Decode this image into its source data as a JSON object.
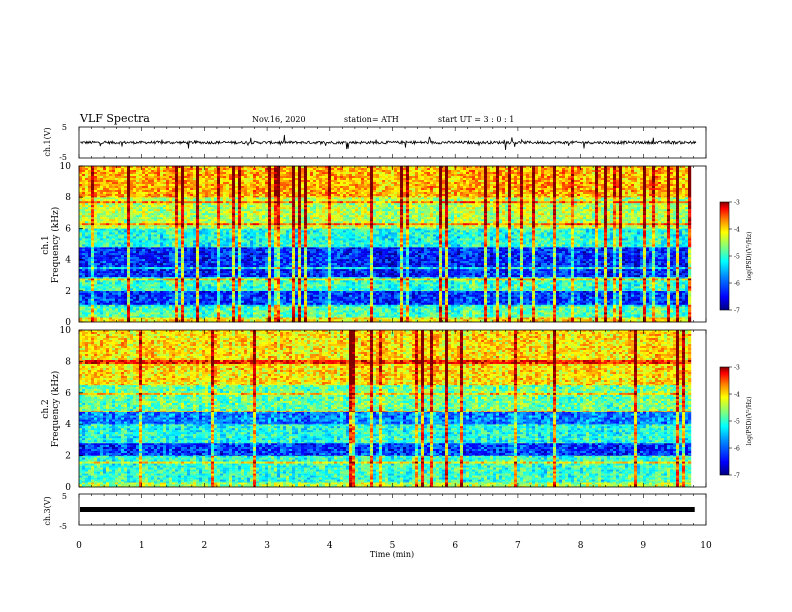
{
  "header": {
    "title": "VLF Spectra",
    "date": "Nov.16, 2020",
    "station": "station= ATH",
    "start": "start  UT =  3 : 0  : 1"
  },
  "colors": {
    "colormap": [
      "#00007f",
      "#0000ff",
      "#0080ff",
      "#00ffff",
      "#7fff7f",
      "#ffff00",
      "#ff8000",
      "#ff0000",
      "#7f0000"
    ]
  },
  "chart_data": [
    {
      "type": "line",
      "panel": "ch1-waveform",
      "ylabel": "ch.1(V)",
      "yticks": [
        5,
        -5
      ],
      "ylim": [
        -5,
        5
      ],
      "xlim": [
        0,
        10
      ],
      "note_level": "signal centered near 0 V with spikes of roughly ±2 V"
    },
    {
      "type": "heatmap",
      "panel": "ch1-spectrogram",
      "ylabel": "ch.1\nFrequency (kHz)",
      "ylabel_line1": "ch.1",
      "ylabel_line2": "Frequency (kHz)",
      "yticks": [
        0,
        2,
        4,
        6,
        8,
        10
      ],
      "ylim": [
        0,
        10
      ],
      "xlim": [
        0,
        9.8
      ],
      "colorbar": {
        "label": "log(PSD)(V²/Hz)",
        "ticks": [
          -3,
          -4,
          -5,
          -6,
          -7
        ],
        "range": [
          -7,
          -3
        ]
      },
      "bands_khz": [
        {
          "from": 0.0,
          "to": 0.3,
          "level": -4.5
        },
        {
          "from": 0.3,
          "to": 1.0,
          "level": -5.2
        },
        {
          "from": 1.0,
          "to": 2.0,
          "level": -6.3
        },
        {
          "from": 2.0,
          "to": 2.8,
          "level": -5.3
        },
        {
          "from": 2.8,
          "to": 4.8,
          "level": -6.4
        },
        {
          "from": 4.8,
          "to": 6.0,
          "level": -5.4
        },
        {
          "from": 6.0,
          "to": 8.0,
          "level": -4.8
        },
        {
          "from": 8.0,
          "to": 10.0,
          "level": -4.2
        }
      ]
    },
    {
      "type": "heatmap",
      "panel": "ch2-spectrogram",
      "ylabel": "ch.2\nFrequency (kHz)",
      "ylabel_line1": "ch.2",
      "ylabel_line2": "Frequency (kHz)",
      "yticks": [
        0,
        2,
        4,
        6,
        8,
        10
      ],
      "ylim": [
        0,
        10
      ],
      "xlim": [
        0,
        9.8
      ],
      "colorbar": {
        "label": "log(PSD)(V²/Hz)",
        "ticks": [
          -3,
          -4,
          -5,
          -6,
          -7
        ],
        "range": [
          -7,
          -3
        ]
      },
      "bands_khz": [
        {
          "from": 0.0,
          "to": 0.3,
          "level": -4.8
        },
        {
          "from": 0.3,
          "to": 2.0,
          "level": -5.3
        },
        {
          "from": 2.0,
          "to": 2.8,
          "level": -6.3
        },
        {
          "from": 2.8,
          "to": 4.0,
          "level": -5.4
        },
        {
          "from": 4.0,
          "to": 4.8,
          "level": -6.0
        },
        {
          "from": 4.8,
          "to": 6.5,
          "level": -5.1
        },
        {
          "from": 6.5,
          "to": 10.0,
          "level": -4.4
        }
      ]
    },
    {
      "type": "line",
      "panel": "ch3-waveform",
      "ylabel": "ch.3(V)",
      "yticks": [
        5,
        -5
      ],
      "ylim": [
        -5,
        5
      ],
      "xlim": [
        0,
        10
      ],
      "level": 0,
      "xlabel": "Time (min)",
      "xticks": [
        0,
        1,
        2,
        3,
        4,
        5,
        6,
        7,
        8,
        9,
        10
      ]
    }
  ]
}
